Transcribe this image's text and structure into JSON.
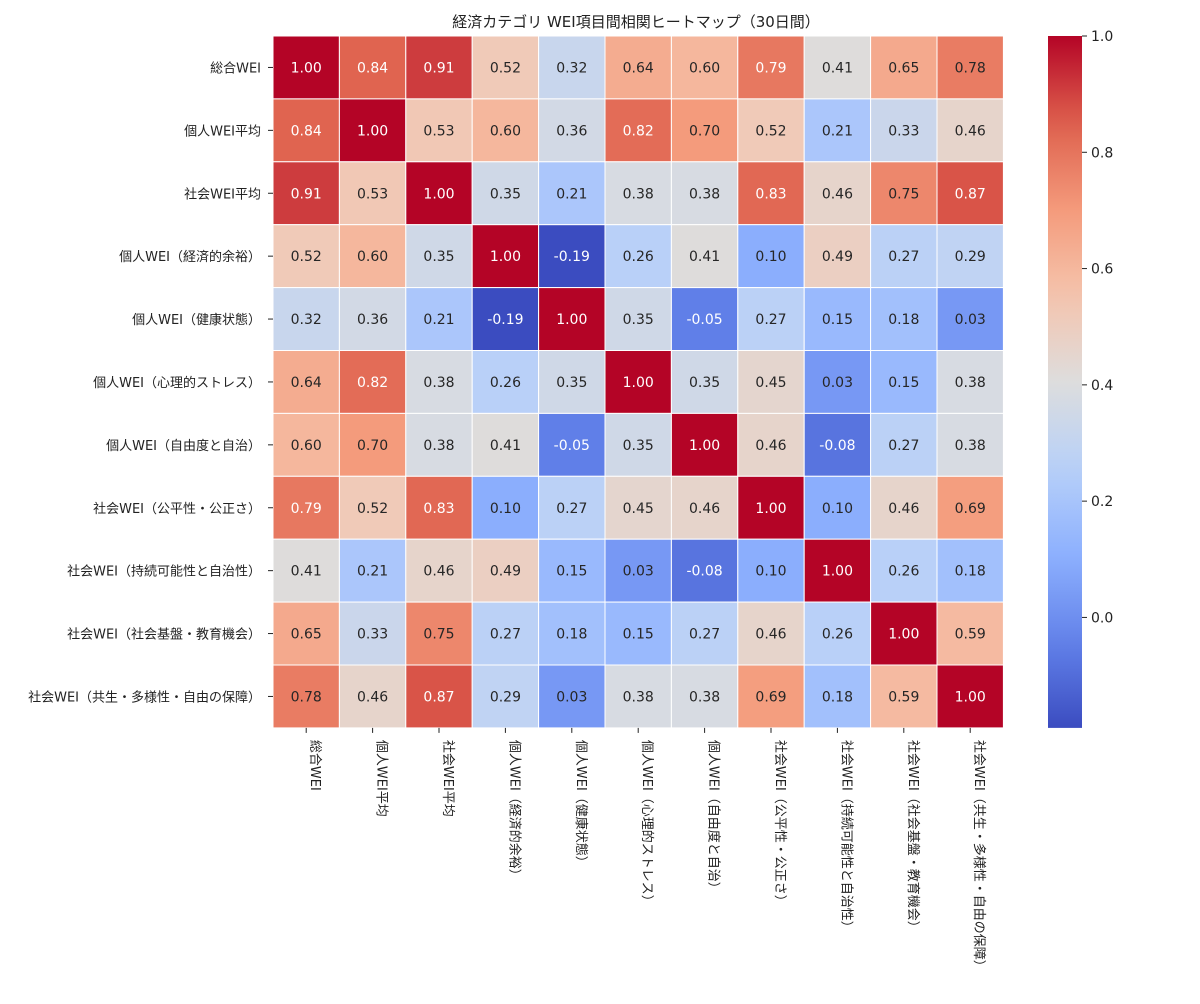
{
  "chart_data": {
    "type": "heatmap",
    "title": "経済カテゴリ WEI項目間相関ヒートマップ（30日間）",
    "row_labels": [
      "総合WEI",
      "個人WEI平均",
      "社会WEI平均",
      "個人WEI（経済的余裕）",
      "個人WEI（健康状態）",
      "個人WEI（心理的ストレス）",
      "個人WEI（自由度と自治）",
      "社会WEI（公平性・公正さ）",
      "社会WEI（持続可能性と自治性）",
      "社会WEI（社会基盤・教育機会）",
      "社会WEI（共生・多様性・自由の保障）"
    ],
    "col_labels": [
      "総合WEI",
      "個人WEI平均",
      "社会WEI平均",
      "個人WEI（経済的余裕）",
      "個人WEI（健康状態）",
      "個人WEI（心理的ストレス）",
      "個人WEI（自由度と自治）",
      "社会WEI（公平性・公正さ）",
      "社会WEI（持続可能性と自治性）",
      "社会WEI（社会基盤・教育機会）",
      "社会WEI（共生・多様性・自由の保障）"
    ],
    "values": [
      [
        1.0,
        0.84,
        0.91,
        0.52,
        0.32,
        0.64,
        0.6,
        0.79,
        0.41,
        0.65,
        0.78
      ],
      [
        0.84,
        1.0,
        0.53,
        0.6,
        0.36,
        0.82,
        0.7,
        0.52,
        0.21,
        0.33,
        0.46
      ],
      [
        0.91,
        0.53,
        1.0,
        0.35,
        0.21,
        0.38,
        0.38,
        0.83,
        0.46,
        0.75,
        0.87
      ],
      [
        0.52,
        0.6,
        0.35,
        1.0,
        -0.19,
        0.26,
        0.41,
        0.1,
        0.49,
        0.27,
        0.29
      ],
      [
        0.32,
        0.36,
        0.21,
        -0.19,
        1.0,
        0.35,
        -0.05,
        0.27,
        0.15,
        0.18,
        0.03
      ],
      [
        0.64,
        0.82,
        0.38,
        0.26,
        0.35,
        1.0,
        0.35,
        0.45,
        0.03,
        0.15,
        0.38
      ],
      [
        0.6,
        0.7,
        0.38,
        0.41,
        -0.05,
        0.35,
        1.0,
        0.46,
        -0.08,
        0.27,
        0.38
      ],
      [
        0.79,
        0.52,
        0.83,
        0.1,
        0.27,
        0.45,
        0.46,
        1.0,
        0.1,
        0.46,
        0.69
      ],
      [
        0.41,
        0.21,
        0.46,
        0.49,
        0.15,
        0.03,
        -0.08,
        0.1,
        1.0,
        0.26,
        0.18
      ],
      [
        0.65,
        0.33,
        0.75,
        0.27,
        0.18,
        0.15,
        0.27,
        0.46,
        0.26,
        1.0,
        0.59
      ],
      [
        0.78,
        0.46,
        0.87,
        0.29,
        0.03,
        0.38,
        0.38,
        0.69,
        0.18,
        0.59,
        1.0
      ]
    ],
    "value_format": "0.00",
    "colormap": "coolwarm",
    "vmin": -0.19,
    "vmax": 1.0,
    "colorbar": {
      "ticks": [
        0.0,
        0.2,
        0.4,
        0.6,
        0.8,
        1.0
      ],
      "tick_labels": [
        "0.0",
        "0.2",
        "0.4",
        "0.6",
        "0.8",
        "1.0"
      ],
      "placement": "right"
    },
    "xlabel": "",
    "ylabel": "",
    "grid": false
  }
}
